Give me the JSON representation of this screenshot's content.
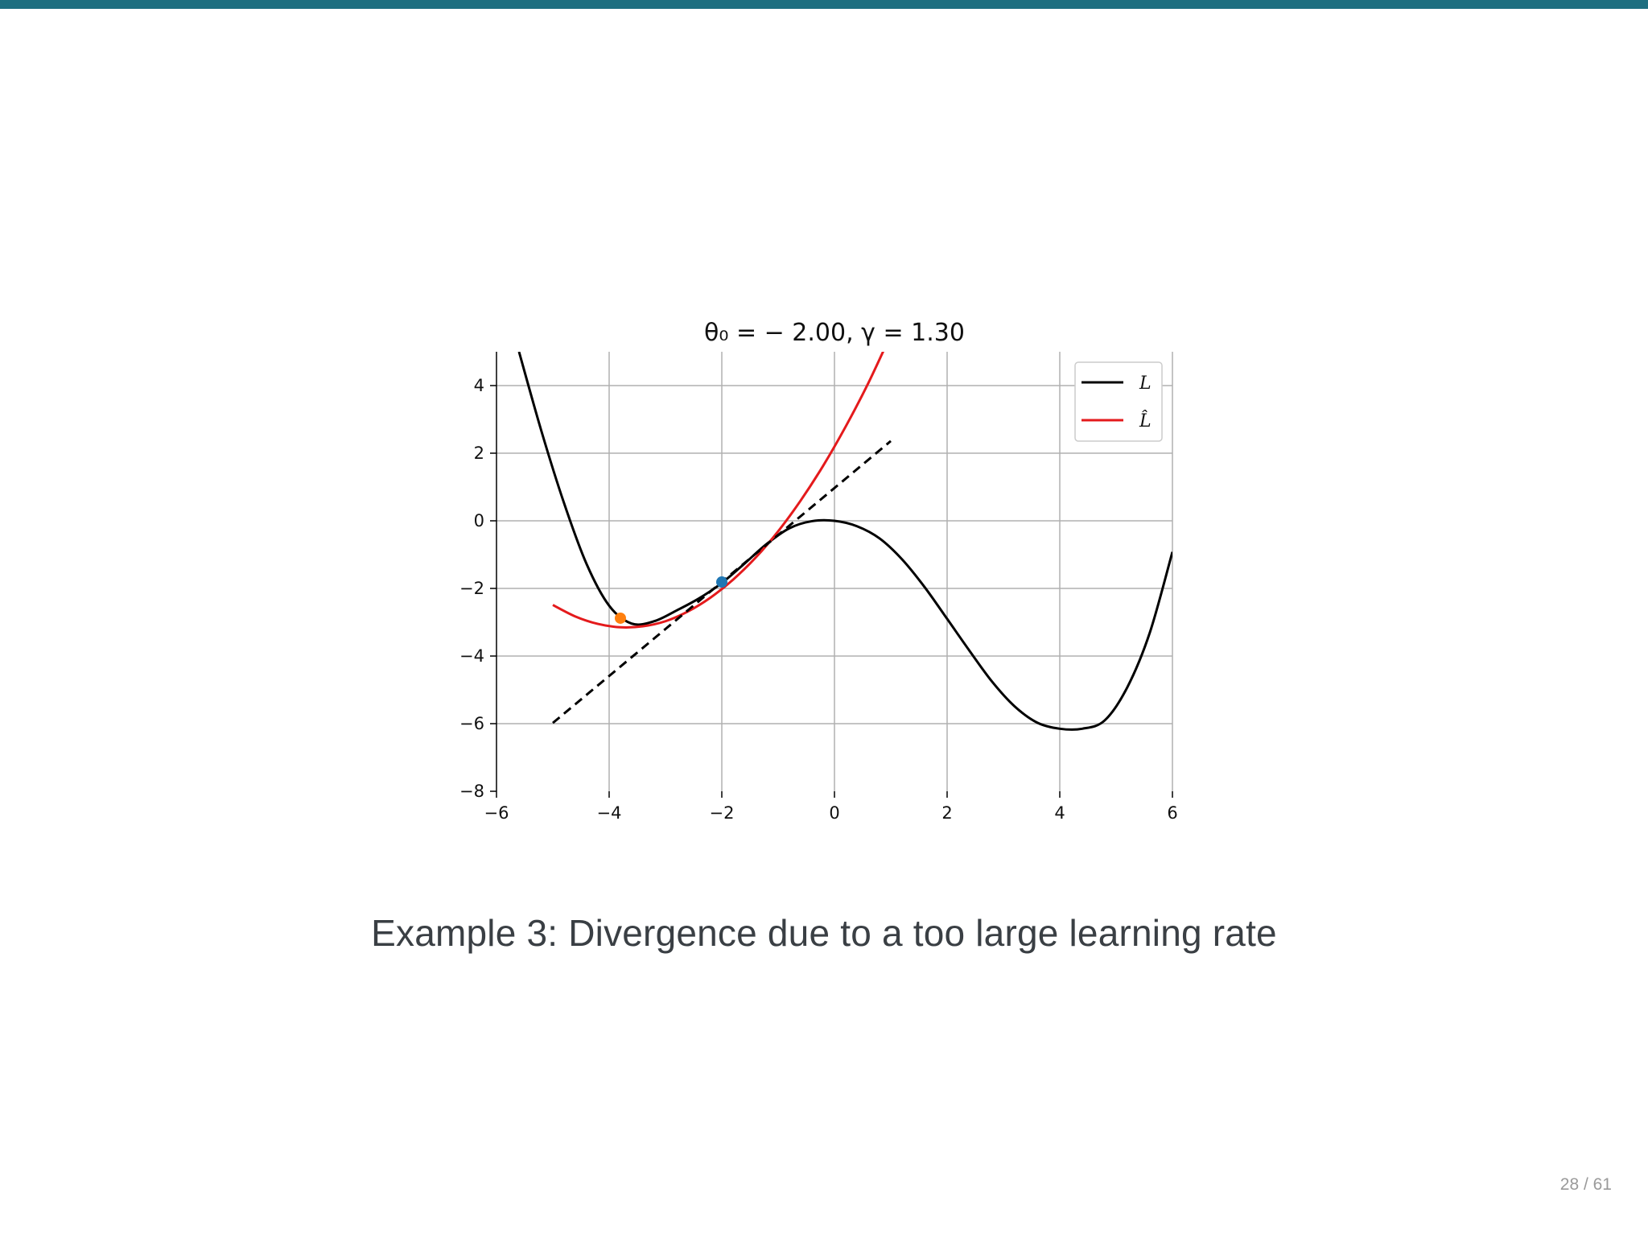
{
  "slide": {
    "caption": "Example 3: Divergence due to a too large learning rate",
    "page_number": "28 / 61",
    "accent_color": "#1e6f80"
  },
  "chart_data": {
    "type": "line",
    "title": "θ₀ = − 2.00, γ = 1.30",
    "xlim": [
      -6,
      6
    ],
    "ylim": [
      -8,
      5
    ],
    "xticks": [
      -6,
      -4,
      -2,
      0,
      2,
      4,
      6
    ],
    "xtick_labels": [
      "−6",
      "−4",
      "−2",
      "0",
      "2",
      "4",
      "6"
    ],
    "yticks": [
      -8,
      -6,
      -4,
      -2,
      0,
      2,
      4
    ],
    "ytick_labels": [
      "−8",
      "−6",
      "−4",
      "−2",
      "0",
      "2",
      "4"
    ],
    "grid": true,
    "legend_position": "top-right",
    "series": [
      {
        "name": "L",
        "color": "#000000",
        "style": "solid",
        "x": [
          -5.6,
          -5.2,
          -4.8,
          -4.4,
          -4.0,
          -3.6,
          -3.2,
          -2.8,
          -2.4,
          -2.0,
          -1.6,
          -1.2,
          -0.8,
          -0.4,
          0.0,
          0.4,
          0.8,
          1.2,
          1.6,
          2.0,
          2.4,
          2.8,
          3.2,
          3.6,
          4.0,
          4.4,
          4.8,
          5.2,
          5.6,
          6.0
        ],
        "y": [
          5.0,
          2.64,
          0.52,
          -1.28,
          -2.51,
          -3.04,
          -2.97,
          -2.65,
          -2.29,
          -1.84,
          -1.27,
          -0.68,
          -0.22,
          -0.01,
          0.0,
          -0.16,
          -0.52,
          -1.14,
          -1.96,
          -2.9,
          -3.85,
          -4.76,
          -5.49,
          -5.97,
          -6.15,
          -6.15,
          -5.9,
          -4.92,
          -3.3,
          -0.92
        ]
      },
      {
        "name": "L̂",
        "color": "#e41a1c",
        "style": "solid",
        "x": [
          -5.0,
          -4.6,
          -4.2,
          -3.8,
          -3.4,
          -3.0,
          -2.6,
          -2.2,
          -1.8,
          -1.4,
          -1.0,
          -0.6,
          -0.2,
          0.2,
          0.6,
          1.0
        ],
        "y": [
          -2.49,
          -2.83,
          -3.05,
          -3.15,
          -3.12,
          -2.97,
          -2.68,
          -2.27,
          -1.74,
          -1.09,
          -0.31,
          0.6,
          1.63,
          2.79,
          4.07,
          5.5
        ]
      },
      {
        "name": "",
        "color": "#000000",
        "style": "dashed",
        "x": [
          -5.0,
          1.0
        ],
        "y": [
          -5.98,
          2.36
        ]
      }
    ],
    "points": [
      {
        "x": -2.0,
        "y": -1.81,
        "color": "#1f77b4"
      },
      {
        "x": -3.8,
        "y": -2.88,
        "color": "#ff7f0e"
      }
    ]
  }
}
